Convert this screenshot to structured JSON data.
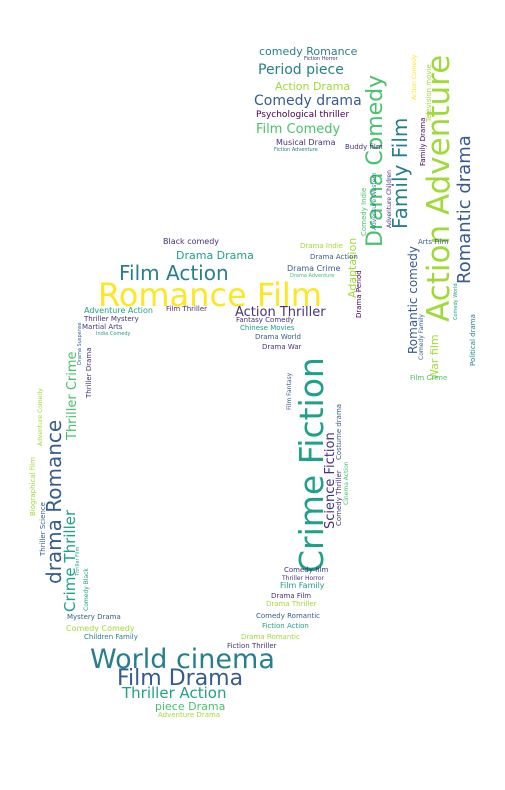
{
  "palette": {
    "yellow": "#fde725",
    "lime": "#a0da39",
    "green": "#4ac16d",
    "teal": "#1fa187",
    "cyan": "#277f8e",
    "blue": "#365c8d",
    "indigo": "#46327e",
    "purple": "#440154"
  },
  "words": {
    "romance_film": "Romance Film",
    "crime_fiction": "Crime Fiction",
    "world_cinema": "World cinema",
    "action_adventure": "Action Adventure",
    "film_drama": "Film Drama",
    "film_action": "Film Action",
    "drama_comedy": "Drama Comedy",
    "romantic_drama": "Romantic drama",
    "family_film": "Family Film",
    "drama_romance": "drama Romance",
    "crime_thriller": "Crime Thriller",
    "thriller_crime": "Thriller Crime",
    "comedy_drama": "Comedy drama",
    "period_piece": "Period piece",
    "thriller_action": "Thriller Action",
    "action_thriller": "Action Thriller",
    "film_comedy": "Film Comedy",
    "comedy_romance": "comedy Romance",
    "action_drama": "Action Drama",
    "drama_drama": "Drama Drama",
    "science_fiction": "Science Fiction",
    "piece_drama": "piece Drama",
    "romantic_comedy": "Romantic comedy",
    "adaptation": "Adaptation",
    "psychological_thriller": "Psychological thriller",
    "war_film": "War film",
    "black_comedy": "Black comedy",
    "musical_drama": "Musical Drama",
    "buddy_film": "Buddy film",
    "fiction_adventure": "Fiction Adventure",
    "fiction_horror": "Fiction Horror",
    "drama_crime": "Drama Crime",
    "drama_action": "Drama Action",
    "drama_indie": "Drama Indie",
    "drama_adventure": "Drama Adventure",
    "film_thriller": "Film Thriller",
    "adventure_action": "Adventure Action",
    "thriller_mystery": "Thriller Mystery",
    "martial_arts": "Martial Arts",
    "indie_comedy": "Indie Comedy",
    "fantasy_comedy": "Fantasy Comedy",
    "chinese_movies": "Chinese Movies",
    "drama_world": "Drama World",
    "drama_war": "Drama War",
    "film_fantasy": "Film Fantasy",
    "costume_drama": "Costume drama",
    "comedy_thriller": "Comedy Thriller",
    "cinema_action": "Cinema Action",
    "thriller_drama": "Thriller Drama",
    "drama_suspense": "Drama Suspense",
    "comedy_indie": "Comedy Indie",
    "drama_period": "Drama Period",
    "adventure_western": "Adventure Western",
    "adventure_children": "Adventure Children",
    "arts_film": "Arts Film",
    "comedy_family": "Comedy Family",
    "comedy_world": "Comedy World",
    "political_drama": "Political drama",
    "film_crime": "Film Crime",
    "family_drama": "Family Drama",
    "television_movie": "Television movie",
    "action_comedy": "Action Comedy",
    "biographical_film": "Biographical film",
    "adventure_comedy": "Adventure Comedy",
    "thriller_science": "Thriller Science",
    "comedy_black": "Comedy Black",
    "thriller_film": "Thriller Film",
    "mystery_drama": "Mystery Drama",
    "comedy_comedy": "Comedy Comedy",
    "children_family": "Children Family",
    "comedy_film": "Comedy film",
    "thriller_horror": "Thriller Horror",
    "film_family": "Film Family",
    "drama_film": "Drama Film",
    "drama_thriller": "Drama Thriller",
    "comedy_romantic": "Comedy Romantic",
    "fiction_action": "Fiction Action",
    "drama_romantic": "Drama Romantic",
    "fiction_thriller": "Fiction Thriller",
    "adventure_drama": "Adventure Drama"
  }
}
